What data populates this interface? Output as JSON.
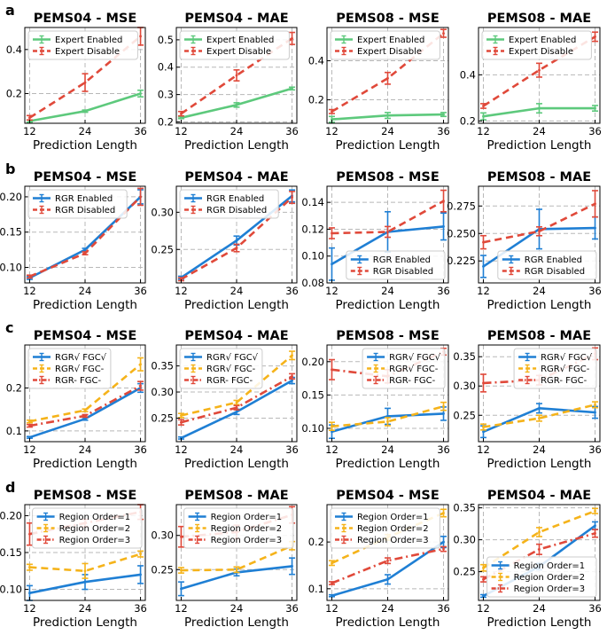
{
  "chart_data": [
    {
      "row": "a",
      "type": "line",
      "title": "PEMS04 - MSE",
      "xlabel": "Prediction Length",
      "x": [
        12,
        24,
        36
      ],
      "ylim": [
        0.065,
        0.5
      ],
      "yticks": [
        0.2,
        0.4
      ],
      "ytick_labels": [
        "0.2",
        "0.4"
      ],
      "legend_position": "upper-left",
      "series": [
        {
          "name": "Expert Enabled",
          "color": "#5dc97c",
          "dash": "",
          "values": [
            0.075,
            0.12,
            0.2
          ],
          "err": [
            0.005,
            0.005,
            0.015
          ]
        },
        {
          "name": "Expert Disable",
          "color": "#e0493a",
          "dash": "8,5",
          "values": [
            0.09,
            0.25,
            0.46
          ],
          "err": [
            0.01,
            0.04,
            0.04
          ]
        }
      ]
    },
    {
      "row": "a",
      "type": "line",
      "title": "PEMS04 - MAE",
      "xlabel": "Prediction Length",
      "x": [
        12,
        24,
        36
      ],
      "ylim": [
        0.195,
        0.545
      ],
      "yticks": [
        0.2,
        0.3,
        0.4,
        0.5
      ],
      "ytick_labels": [
        "0.2",
        "0.3",
        "0.4",
        "0.5"
      ],
      "legend_position": "upper-left",
      "series": [
        {
          "name": "Expert Enabled",
          "color": "#5dc97c",
          "dash": "",
          "values": [
            0.215,
            0.262,
            0.322
          ],
          "err": [
            0.003,
            0.008,
            0.005
          ]
        },
        {
          "name": "Expert Disable",
          "color": "#e0493a",
          "dash": "8,5",
          "values": [
            0.23,
            0.37,
            0.505
          ],
          "err": [
            0.008,
            0.02,
            0.022
          ]
        }
      ]
    },
    {
      "row": "a",
      "type": "line",
      "title": "PEMS08 - MSE",
      "xlabel": "Prediction Length",
      "x": [
        12,
        24,
        36
      ],
      "ylim": [
        0.08,
        0.57
      ],
      "yticks": [
        0.2,
        0.4
      ],
      "ytick_labels": [
        "0.2",
        "0.4"
      ],
      "legend_position": "upper-left",
      "series": [
        {
          "name": "Expert Enabled",
          "color": "#5dc97c",
          "dash": "",
          "values": [
            0.1,
            0.12,
            0.125
          ],
          "err": [
            0.015,
            0.015,
            0.01
          ]
        },
        {
          "name": "Expert Disable",
          "color": "#e0493a",
          "dash": "8,5",
          "values": [
            0.14,
            0.31,
            0.54
          ],
          "err": [
            0.01,
            0.03,
            0.02
          ]
        }
      ]
    },
    {
      "row": "a",
      "type": "line",
      "title": "PEMS08 - MAE",
      "xlabel": "Prediction Length",
      "x": [
        12,
        24,
        36
      ],
      "ylim": [
        0.19,
        0.605
      ],
      "yticks": [
        0.2,
        0.4
      ],
      "ytick_labels": [
        "0.2",
        "0.4"
      ],
      "legend_position": "upper-left",
      "series": [
        {
          "name": "Expert Enabled",
          "color": "#5dc97c",
          "dash": "",
          "values": [
            0.22,
            0.255,
            0.255
          ],
          "err": [
            0.015,
            0.02,
            0.012
          ]
        },
        {
          "name": "Expert Disable",
          "color": "#e0493a",
          "dash": "8,5",
          "values": [
            0.265,
            0.42,
            0.565
          ],
          "err": [
            0.01,
            0.03,
            0.02
          ]
        }
      ]
    },
    {
      "row": "b",
      "type": "line",
      "title": "PEMS04 - MSE",
      "xlabel": "Prediction Length",
      "x": [
        12,
        24,
        36
      ],
      "ylim": [
        0.078,
        0.215
      ],
      "yticks": [
        0.1,
        0.15,
        0.2
      ],
      "ytick_labels": [
        "0.10",
        "0.15",
        "0.20"
      ],
      "legend_position": "upper-left",
      "series": [
        {
          "name": "RGR Enabled",
          "color": "#1f7fd4",
          "dash": "",
          "values": [
            0.085,
            0.125,
            0.2
          ],
          "err": [
            0.002,
            0.002,
            0.01
          ]
        },
        {
          "name": "RGR Disabled",
          "color": "#e0493a",
          "dash": "8,5",
          "values": [
            0.087,
            0.12,
            0.2
          ],
          "err": [
            0.002,
            0.002,
            0.012
          ]
        }
      ]
    },
    {
      "row": "b",
      "type": "line",
      "title": "PEMS04 - MAE",
      "xlabel": "Prediction Length",
      "x": [
        12,
        24,
        36
      ],
      "ylim": [
        0.205,
        0.335
      ],
      "yticks": [
        0.25,
        0.3
      ],
      "ytick_labels": [
        "0.25",
        "0.30"
      ],
      "legend_position": "upper-left",
      "series": [
        {
          "name": "RGR Enabled",
          "color": "#1f7fd4",
          "dash": "",
          "values": [
            0.212,
            0.262,
            0.322
          ],
          "err": [
            0.002,
            0.006,
            0.008
          ]
        },
        {
          "name": "RGR Disabled",
          "color": "#e0493a",
          "dash": "8,5",
          "values": [
            0.21,
            0.252,
            0.32
          ],
          "err": [
            0.002,
            0.005,
            0.008
          ]
        }
      ]
    },
    {
      "row": "b",
      "type": "line",
      "title": "PEMS08 - MSE",
      "xlabel": "Prediction Length",
      "x": [
        12,
        24,
        36
      ],
      "ylim": [
        0.08,
        0.152
      ],
      "yticks": [
        0.08,
        0.1,
        0.12,
        0.14
      ],
      "ytick_labels": [
        "0.08",
        "0.10",
        "0.12",
        "0.14"
      ],
      "legend_position": "lower-right",
      "series": [
        {
          "name": "RGR Enabled",
          "color": "#1f7fd4",
          "dash": "",
          "values": [
            0.094,
            0.118,
            0.122
          ],
          "err": [
            0.012,
            0.015,
            0.01
          ]
        },
        {
          "name": "RGR Disabled",
          "color": "#e0493a",
          "dash": "8,5",
          "values": [
            0.117,
            0.118,
            0.141
          ],
          "err": [
            0.004,
            0.004,
            0.008
          ]
        }
      ]
    },
    {
      "row": "b",
      "type": "line",
      "title": "PEMS08 - MAE",
      "xlabel": "Prediction Length",
      "x": [
        12,
        24,
        36
      ],
      "ylim": [
        0.205,
        0.293
      ],
      "yticks": [
        0.225,
        0.25,
        0.275
      ],
      "ytick_labels": [
        "0.225",
        "0.250",
        "0.275"
      ],
      "legend_position": "lower-right",
      "series": [
        {
          "name": "RGR Enabled",
          "color": "#1f7fd4",
          "dash": "",
          "values": [
            0.22,
            0.254,
            0.255
          ],
          "err": [
            0.01,
            0.018,
            0.01
          ]
        },
        {
          "name": "RGR Disabled",
          "color": "#e0493a",
          "dash": "8,5",
          "values": [
            0.242,
            0.252,
            0.277
          ],
          "err": [
            0.006,
            0.004,
            0.012
          ]
        }
      ]
    },
    {
      "row": "c",
      "type": "line",
      "title": "PEMS04 - MSE",
      "xlabel": "Prediction Length",
      "x": [
        12,
        24,
        36
      ],
      "ylim": [
        0.075,
        0.3
      ],
      "yticks": [
        0.1,
        0.2
      ],
      "ytick_labels": [
        "0.1",
        "0.2"
      ],
      "legend_position": "upper-left",
      "series": [
        {
          "name": "RGR√ FGC√",
          "color": "#1f7fd4",
          "dash": "",
          "values": [
            0.085,
            0.128,
            0.2
          ],
          "err": [
            0.002,
            0.003,
            0.01
          ]
        },
        {
          "name": "RGR√ FGC-",
          "color": "#f5b31a",
          "dash": "8,5",
          "values": [
            0.122,
            0.148,
            0.255
          ],
          "err": [
            0.003,
            0.003,
            0.015
          ]
        },
        {
          "name": "RGR- FGC-",
          "color": "#e0493a",
          "dash": "9,4,2,4",
          "values": [
            0.112,
            0.135,
            0.205
          ],
          "err": [
            0.003,
            0.003,
            0.01
          ]
        }
      ]
    },
    {
      "row": "c",
      "type": "line",
      "title": "PEMS04 - MAE",
      "xlabel": "Prediction Length",
      "x": [
        12,
        24,
        36
      ],
      "ylim": [
        0.205,
        0.39
      ],
      "yticks": [
        0.25,
        0.3,
        0.35
      ],
      "ytick_labels": [
        "0.25",
        "0.30",
        "0.35"
      ],
      "legend_position": "upper-left",
      "series": [
        {
          "name": "RGR√ FGC√",
          "color": "#1f7fd4",
          "dash": "",
          "values": [
            0.212,
            0.262,
            0.322
          ],
          "err": [
            0.002,
            0.005,
            0.006
          ]
        },
        {
          "name": "RGR√ FGC-",
          "color": "#f5b31a",
          "dash": "8,5",
          "values": [
            0.255,
            0.28,
            0.37
          ],
          "err": [
            0.004,
            0.004,
            0.008
          ]
        },
        {
          "name": "RGR- FGC-",
          "color": "#e0493a",
          "dash": "9,4,2,4",
          "values": [
            0.242,
            0.27,
            0.33
          ],
          "err": [
            0.005,
            0.004,
            0.005
          ]
        }
      ]
    },
    {
      "row": "c",
      "type": "line",
      "title": "PEMS08 - MSE",
      "xlabel": "Prediction Length",
      "x": [
        12,
        24,
        36
      ],
      "ylim": [
        0.08,
        0.225
      ],
      "yticks": [
        0.1,
        0.15,
        0.2
      ],
      "ytick_labels": [
        "0.10",
        "0.15",
        "0.20"
      ],
      "legend_position": "upper-right",
      "series": [
        {
          "name": "RGR√ FGC√",
          "color": "#1f7fd4",
          "dash": "",
          "values": [
            0.095,
            0.118,
            0.122
          ],
          "err": [
            0.01,
            0.012,
            0.01
          ]
        },
        {
          "name": "RGR√ FGC-",
          "color": "#f5b31a",
          "dash": "8,5",
          "values": [
            0.103,
            0.11,
            0.133
          ],
          "err": [
            0.006,
            0.006,
            0.006
          ]
        },
        {
          "name": "RGR- FGC-",
          "color": "#e0493a",
          "dash": "9,4,2,4",
          "values": [
            0.188,
            0.178,
            0.215
          ],
          "err": [
            0.015,
            0.01,
            0.005
          ]
        }
      ]
    },
    {
      "row": "c",
      "type": "line",
      "title": "PEMS08 - MAE",
      "xlabel": "Prediction Length",
      "x": [
        12,
        24,
        36
      ],
      "ylim": [
        0.205,
        0.37
      ],
      "yticks": [
        0.25,
        0.3,
        0.35
      ],
      "ytick_labels": [
        "0.25",
        "0.30",
        "0.35"
      ],
      "legend_position": "upper-right",
      "series": [
        {
          "name": "RGR√ FGC√",
          "color": "#1f7fd4",
          "dash": "",
          "values": [
            0.222,
            0.262,
            0.255
          ],
          "err": [
            0.01,
            0.008,
            0.01
          ]
        },
        {
          "name": "RGR√ FGC-",
          "color": "#f5b31a",
          "dash": "8,5",
          "values": [
            0.23,
            0.245,
            0.268
          ],
          "err": [
            0.005,
            0.005,
            0.005
          ]
        },
        {
          "name": "RGR- FGC-",
          "color": "#e0493a",
          "dash": "9,4,2,4",
          "values": [
            0.305,
            0.31,
            0.355
          ],
          "err": [
            0.015,
            0.008,
            0.01
          ]
        }
      ]
    },
    {
      "row": "d",
      "type": "line",
      "title": "PEMS08 - MSE",
      "xlabel": "Prediction Length",
      "x": [
        12,
        24,
        36
      ],
      "ylim": [
        0.085,
        0.215
      ],
      "yticks": [
        0.1,
        0.15,
        0.2
      ],
      "ytick_labels": [
        "0.10",
        "0.15",
        "0.20"
      ],
      "legend_position": "upper-right",
      "series": [
        {
          "name": "Region Order=1",
          "color": "#1f7fd4",
          "dash": "",
          "values": [
            0.095,
            0.11,
            0.12
          ],
          "err": [
            0.01,
            0.01,
            0.012
          ]
        },
        {
          "name": "Region Order=2",
          "color": "#f5b31a",
          "dash": "8,5",
          "values": [
            0.13,
            0.125,
            0.148
          ],
          "err": [
            0.004,
            0.01,
            0.004
          ]
        },
        {
          "name": "Region Order=3",
          "color": "#e0493a",
          "dash": "9,4,2,4",
          "values": [
            0.175,
            0.19,
            0.205
          ],
          "err": [
            0.015,
            0.005,
            0.01
          ]
        }
      ]
    },
    {
      "row": "d",
      "type": "line",
      "title": "PEMS08 - MAE",
      "xlabel": "Prediction Length",
      "x": [
        12,
        24,
        36
      ],
      "ylim": [
        0.205,
        0.345
      ],
      "yticks": [
        0.25,
        0.3
      ],
      "ytick_labels": [
        "0.25",
        "0.30"
      ],
      "legend_position": "upper-right",
      "series": [
        {
          "name": "Region Order=1",
          "color": "#1f7fd4",
          "dash": "",
          "values": [
            0.222,
            0.246,
            0.255
          ],
          "err": [
            0.01,
            0.005,
            0.012
          ]
        },
        {
          "name": "Region Order=2",
          "color": "#f5b31a",
          "dash": "8,5",
          "values": [
            0.249,
            0.25,
            0.285
          ],
          "err": [
            0.004,
            0.004,
            0.006
          ]
        },
        {
          "name": "Region Order=3",
          "color": "#e0493a",
          "dash": "9,4,2,4",
          "values": [
            0.298,
            0.305,
            0.33
          ],
          "err": [
            0.015,
            0.01,
            0.012
          ]
        }
      ]
    },
    {
      "row": "d",
      "type": "line",
      "title": "PEMS04 - MSE",
      "xlabel": "Prediction Length",
      "x": [
        12,
        24,
        36
      ],
      "ylim": [
        0.075,
        0.28
      ],
      "yticks": [
        0.1,
        0.2
      ],
      "ytick_labels": [
        "0.1",
        "0.2"
      ],
      "legend_position": "upper-left",
      "series": [
        {
          "name": "Region Order=1",
          "color": "#1f7fd4",
          "dash": "",
          "values": [
            0.085,
            0.12,
            0.2
          ],
          "err": [
            0.002,
            0.01,
            0.012
          ]
        },
        {
          "name": "Region Order=2",
          "color": "#f5b31a",
          "dash": "8,5",
          "values": [
            0.155,
            0.21,
            0.262
          ],
          "err": [
            0.005,
            0.006,
            0.008
          ]
        },
        {
          "name": "Region Order=3",
          "color": "#e0493a",
          "dash": "9,4,2,4",
          "values": [
            0.112,
            0.16,
            0.185
          ],
          "err": [
            0.003,
            0.006,
            0.005
          ]
        }
      ]
    },
    {
      "row": "d",
      "type": "line",
      "title": "PEMS04 - MAE",
      "xlabel": "Prediction Length",
      "x": [
        12,
        24,
        36
      ],
      "ylim": [
        0.205,
        0.355
      ],
      "yticks": [
        0.25,
        0.3,
        0.35
      ],
      "ytick_labels": [
        "0.25",
        "0.30",
        "0.35"
      ],
      "legend_position": "lower-right",
      "series": [
        {
          "name": "Region Order=1",
          "color": "#1f7fd4",
          "dash": "",
          "values": [
            0.212,
            0.258,
            0.322
          ],
          "err": [
            0.002,
            0.005,
            0.006
          ]
        },
        {
          "name": "Region Order=2",
          "color": "#f5b31a",
          "dash": "8,5",
          "values": [
            0.256,
            0.312,
            0.345
          ],
          "err": [
            0.005,
            0.007,
            0.004
          ]
        },
        {
          "name": "Region Order=3",
          "color": "#e0493a",
          "dash": "9,4,2,4",
          "values": [
            0.238,
            0.285,
            0.31
          ],
          "err": [
            0.004,
            0.008,
            0.006
          ]
        }
      ]
    }
  ],
  "row_labels": [
    "a",
    "b",
    "c",
    "d"
  ]
}
